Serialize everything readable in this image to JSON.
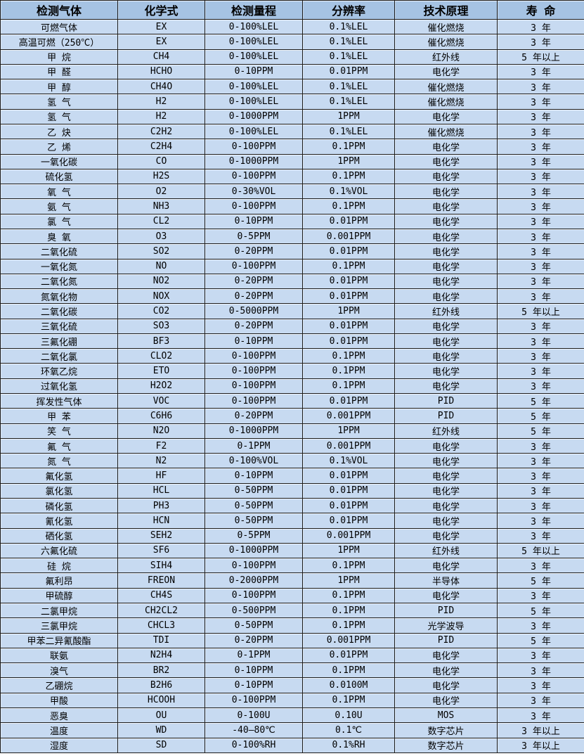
{
  "colors": {
    "header_bg": "#a6c3e3",
    "row_bg": "#c7daf1",
    "border": "#1c1c1c",
    "text": "#000000"
  },
  "table": {
    "headers": [
      "检测气体",
      "化学式",
      "检测量程",
      "分辨率",
      "技术原理",
      "寿 命"
    ],
    "rows": [
      [
        "可燃气体",
        "EX",
        "0-100%LEL",
        "0.1%LEL",
        "催化燃烧",
        "3 年"
      ],
      [
        "高温可燃（250℃）",
        "EX",
        "0-100%LEL",
        "0.1%LEL",
        "催化燃烧",
        "3 年"
      ],
      [
        "甲 烷",
        "CH4",
        "0-100%LEL",
        "0.1%LEL",
        "红外线",
        "5 年以上"
      ],
      [
        "甲 醛",
        "HCHO",
        "0-10PPM",
        "0.01PPM",
        "电化学",
        "3 年"
      ],
      [
        "甲 醇",
        "CH4O",
        "0-100%LEL",
        "0.1%LEL",
        "催化燃烧",
        "3 年"
      ],
      [
        "氢 气",
        "H2",
        "0-100%LEL",
        "0.1%LEL",
        "催化燃烧",
        "3 年"
      ],
      [
        "氢 气",
        "H2",
        "0-1000PPM",
        "1PPM",
        "电化学",
        "3 年"
      ],
      [
        "乙 炔",
        "C2H2",
        "0-100%LEL",
        "0.1%LEL",
        "催化燃烧",
        "3 年"
      ],
      [
        "乙 烯",
        "C2H4",
        "0-100PPM",
        "0.1PPM",
        "电化学",
        "3 年"
      ],
      [
        "一氧化碳",
        "CO",
        "0-1000PPM",
        "1PPM",
        "电化学",
        "3 年"
      ],
      [
        "硫化氢",
        "H2S",
        "0-100PPM",
        "0.1PPM",
        "电化学",
        "3 年"
      ],
      [
        "氧 气",
        "O2",
        "0-30%VOL",
        "0.1%VOL",
        "电化学",
        "3 年"
      ],
      [
        "氨 气",
        "NH3",
        "0-100PPM",
        "0.1PPM",
        "电化学",
        "3 年"
      ],
      [
        "氯 气",
        "CL2",
        "0-10PPM",
        "0.01PPM",
        "电化学",
        "3 年"
      ],
      [
        "臭 氧",
        "O3",
        "0-5PPM",
        "0.001PPM",
        "电化学",
        "3 年"
      ],
      [
        "二氧化硫",
        "SO2",
        "0-20PPM",
        "0.01PPM",
        "电化学",
        "3 年"
      ],
      [
        "一氧化氮",
        "NO",
        "0-100PPM",
        "0.1PPM",
        "电化学",
        "3 年"
      ],
      [
        "二氧化氮",
        "NO2",
        "0-20PPM",
        "0.01PPM",
        "电化学",
        "3 年"
      ],
      [
        "氮氧化物",
        "NOX",
        "0-20PPM",
        "0.01PPM",
        "电化学",
        "3 年"
      ],
      [
        "二氧化碳",
        "CO2",
        "0-5000PPM",
        "1PPM",
        "红外线",
        "5 年以上"
      ],
      [
        "三氧化硫",
        "SO3",
        "0-20PPM",
        "0.01PPM",
        "电化学",
        "3 年"
      ],
      [
        "三氟化硼",
        "BF3",
        "0-10PPM",
        "0.01PPM",
        "电化学",
        "3 年"
      ],
      [
        "二氧化氯",
        "CLO2",
        "0-100PPM",
        "0.1PPM",
        "电化学",
        "3 年"
      ],
      [
        "环氧乙烷",
        "ETO",
        "0-100PPM",
        "0.1PPM",
        "电化学",
        "3 年"
      ],
      [
        "过氧化氢",
        "H2O2",
        "0-100PPM",
        "0.1PPM",
        "电化学",
        "3 年"
      ],
      [
        "挥发性气体",
        "VOC",
        "0-100PPM",
        "0.01PPM",
        "PID",
        "5 年"
      ],
      [
        "甲 苯",
        "C6H6",
        "0-20PPM",
        "0.001PPM",
        "PID",
        "5 年"
      ],
      [
        "笑 气",
        "N2O",
        "0-1000PPM",
        "1PPM",
        "红外线",
        "5 年"
      ],
      [
        "氟 气",
        "F2",
        "0-1PPM",
        "0.001PPM",
        "电化学",
        "3 年"
      ],
      [
        "氮 气",
        "N2",
        "0-100%VOL",
        "0.1%VOL",
        "电化学",
        "3 年"
      ],
      [
        "氟化氢",
        "HF",
        "0-10PPM",
        "0.01PPM",
        "电化学",
        "3 年"
      ],
      [
        "氯化氢",
        "HCL",
        "0-50PPM",
        "0.01PPM",
        "电化学",
        "3 年"
      ],
      [
        "磷化氢",
        "PH3",
        "0-50PPM",
        "0.01PPM",
        "电化学",
        "3 年"
      ],
      [
        "氰化氢",
        "HCN",
        "0-50PPM",
        "0.01PPM",
        "电化学",
        "3 年"
      ],
      [
        "硒化氢",
        "SEH2",
        "0-5PPM",
        "0.001PPM",
        "电化学",
        "3 年"
      ],
      [
        "六氟化硫",
        "SF6",
        "0-1000PPM",
        "1PPM",
        "红外线",
        "5 年以上"
      ],
      [
        "硅 烷",
        "SIH4",
        "0-100PPM",
        "0.1PPM",
        "电化学",
        "3 年"
      ],
      [
        "氟利昂",
        "FREON",
        "0-2000PPM",
        "1PPM",
        "半导体",
        "5 年"
      ],
      [
        "甲硫醇",
        "CH4S",
        "0-100PPM",
        "0.1PPM",
        "电化学",
        "3 年"
      ],
      [
        "二氯甲烷",
        "CH2CL2",
        "0-500PPM",
        "0.1PPM",
        "PID",
        "5 年"
      ],
      [
        "三氯甲烷",
        "CHCL3",
        "0-50PPM",
        "0.1PPM",
        "光学波导",
        "3 年"
      ],
      [
        "甲苯二异氰酸酯",
        "TDI",
        "0-20PPM",
        "0.001PPM",
        "PID",
        "5 年"
      ],
      [
        "联氨",
        "N2H4",
        "0-1PPM",
        "0.01PPM",
        "电化学",
        "3 年"
      ],
      [
        "溴气",
        "BR2",
        "0-10PPM",
        "0.1PPM",
        "电化学",
        "3 年"
      ],
      [
        "乙硼烷",
        "B2H6",
        "0-10PPM",
        "0.0100M",
        "电化学",
        "3 年"
      ],
      [
        "甲酸",
        "HCOOH",
        "0-100PPM",
        "0.1PPM",
        "电化学",
        "3 年"
      ],
      [
        "恶臭",
        "OU",
        "0-100U",
        "0.10U",
        "MOS",
        "3 年"
      ],
      [
        "温度",
        "WD",
        "-40—80℃",
        "0.1℃",
        "数字芯片",
        "3 年以上"
      ],
      [
        "湿度",
        "SD",
        "0-100%RH",
        "0.1%RH",
        "数字芯片",
        "3 年以上"
      ]
    ]
  }
}
